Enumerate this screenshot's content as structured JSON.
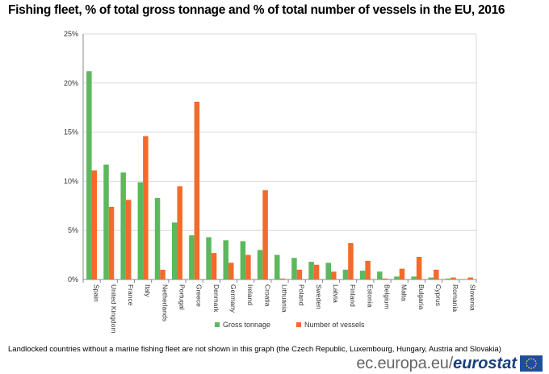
{
  "title": "Fishing fleet, % of total gross tonnage and % of total number of vessels in the EU, 2016",
  "footnote": "Landlocked countries without a marine fishing fleet are not shown in this graph (the Czech Republic, Luxembourg, Hungary, Austria and Slovakia)",
  "brand": {
    "url": "ec.europa.eu/",
    "name": "eurostat",
    "logo": "eu-flag-icon"
  },
  "colors": {
    "gross_tonnage": "#5cb85c",
    "vessels": "#f26b2a",
    "grid": "#d9d9d9",
    "axis": "#888888",
    "flag": "#1f4e9c",
    "stars": "#ffcc00"
  },
  "chart_data": {
    "type": "bar",
    "categories": [
      "Spain",
      "United Kingdom",
      "France",
      "Italy",
      "Netherlands",
      "Portugal",
      "Greece",
      "Denmark",
      "Germany",
      "Ireland",
      "Croatia",
      "Lithuania",
      "Poland",
      "Sweden",
      "Latvia",
      "Finland",
      "Estonia",
      "Belgium",
      "Malta",
      "Bulgaria",
      "Cyprus",
      "Romania",
      "Slovenia"
    ],
    "series": [
      {
        "name": "Gross tonnage",
        "values": [
          21.2,
          11.7,
          10.9,
          9.9,
          8.3,
          5.8,
          4.5,
          4.3,
          4.0,
          3.9,
          3.0,
          2.5,
          2.2,
          1.8,
          1.7,
          1.0,
          0.9,
          0.8,
          0.3,
          0.3,
          0.2,
          0.1,
          0.0
        ]
      },
      {
        "name": "Number of vessels",
        "values": [
          11.1,
          7.4,
          8.1,
          14.6,
          1.0,
          9.5,
          18.1,
          2.7,
          1.7,
          2.5,
          9.1,
          0.1,
          1.0,
          1.5,
          0.8,
          3.7,
          1.9,
          0.1,
          1.1,
          2.3,
          1.0,
          0.2,
          0.2
        ]
      }
    ],
    "ylim": [
      0,
      25
    ],
    "yticks": [
      "0%",
      "5%",
      "10%",
      "15%",
      "20%",
      "25%"
    ],
    "grid": true,
    "legend": "bottom"
  }
}
